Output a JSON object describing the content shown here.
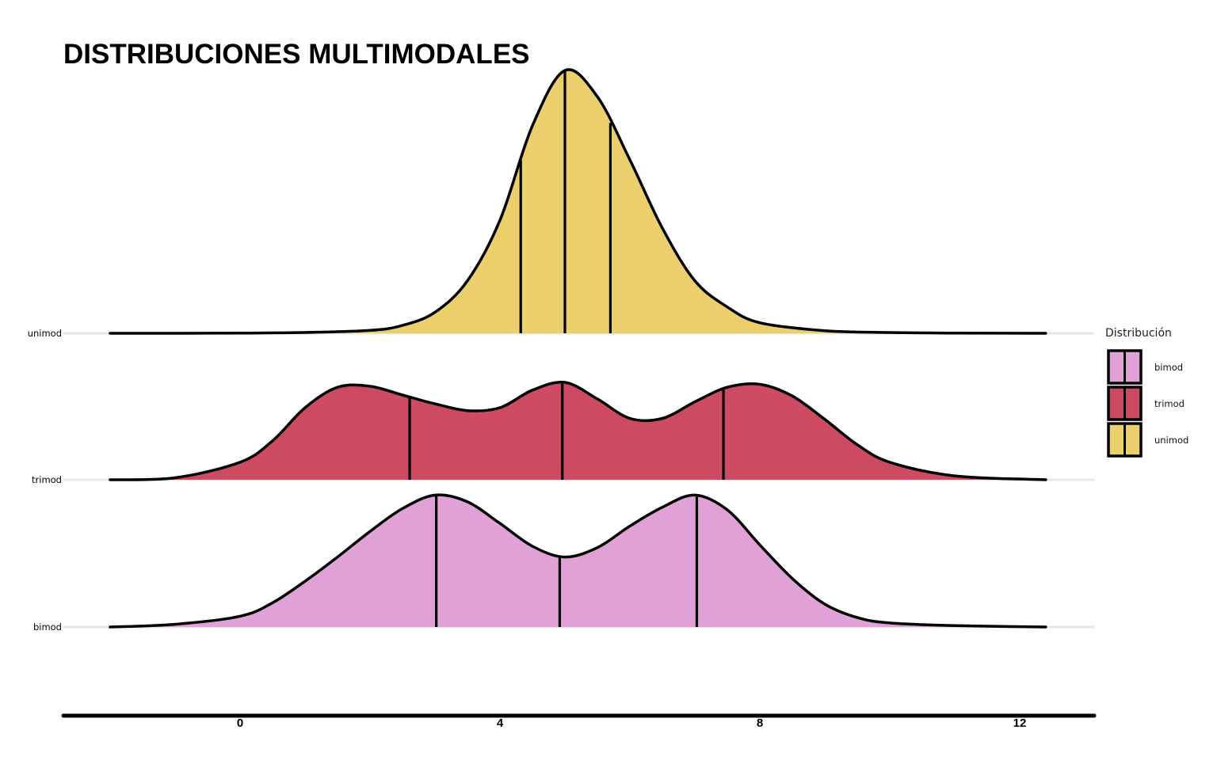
{
  "chart_data": {
    "type": "ridgeline",
    "title": "DISTRIBUCIONES MULTIMODALES",
    "xlabel": "",
    "ylabel": "",
    "xlim": [
      -5,
      12.6
    ],
    "x_ticks": [
      0,
      4,
      8,
      12
    ],
    "grid": false,
    "legend": {
      "title": "Distribución",
      "placement": "right",
      "entries": [
        "bimod",
        "trimod",
        "unimod"
      ]
    },
    "colors": {
      "bimod": "#e0a1d6",
      "trimod": "#cc4b62",
      "unimod": "#ebcf6c",
      "outline": "#000000",
      "baseline": "#e6e6e6"
    },
    "rows": [
      "unimod",
      "trimod",
      "bimod"
    ],
    "series": [
      {
        "name": "unimod",
        "quantiles": [
          4.32,
          5.0,
          5.7
        ],
        "density": {
          "x": [
            -2,
            -1,
            0,
            1,
            2,
            2.5,
            3,
            3.5,
            4,
            4.5,
            5,
            5.5,
            6,
            6.5,
            7,
            7.5,
            8,
            9,
            10,
            11,
            12.4
          ],
          "y": [
            0,
            0,
            0.001,
            0.003,
            0.011,
            0.03,
            0.08,
            0.2,
            0.43,
            0.79,
            1.0,
            0.9,
            0.66,
            0.4,
            0.2,
            0.1,
            0.04,
            0.01,
            0.003,
            0.001,
            0
          ]
        }
      },
      {
        "name": "trimod",
        "quantiles": [
          2.61,
          4.96,
          7.44
        ],
        "density": {
          "x": [
            -2,
            -1,
            0,
            0.5,
            1,
            1.5,
            2,
            2.5,
            3,
            3.5,
            4,
            4.5,
            5,
            5.5,
            6,
            6.5,
            7,
            7.5,
            8,
            8.5,
            9,
            9.5,
            10,
            11,
            12.4
          ],
          "y": [
            0,
            0.02,
            0.18,
            0.4,
            0.74,
            0.95,
            0.96,
            0.87,
            0.78,
            0.71,
            0.74,
            0.92,
            1.0,
            0.83,
            0.63,
            0.63,
            0.8,
            0.95,
            0.98,
            0.86,
            0.62,
            0.36,
            0.18,
            0.04,
            0
          ]
        }
      },
      {
        "name": "bimod",
        "quantiles": [
          3.02,
          4.92,
          7.03
        ],
        "density": {
          "x": [
            -2,
            -1,
            0,
            0.5,
            1,
            1.5,
            2,
            2.5,
            3,
            3.5,
            4,
            4.5,
            5,
            5.5,
            6,
            6.5,
            7,
            7.5,
            8,
            8.5,
            9,
            9.5,
            10,
            11,
            12.4
          ],
          "y": [
            0,
            0.02,
            0.08,
            0.18,
            0.34,
            0.52,
            0.71,
            0.88,
            0.98,
            0.93,
            0.77,
            0.6,
            0.52,
            0.59,
            0.75,
            0.89,
            0.98,
            0.87,
            0.61,
            0.36,
            0.17,
            0.07,
            0.03,
            0.01,
            0
          ]
        }
      }
    ]
  }
}
